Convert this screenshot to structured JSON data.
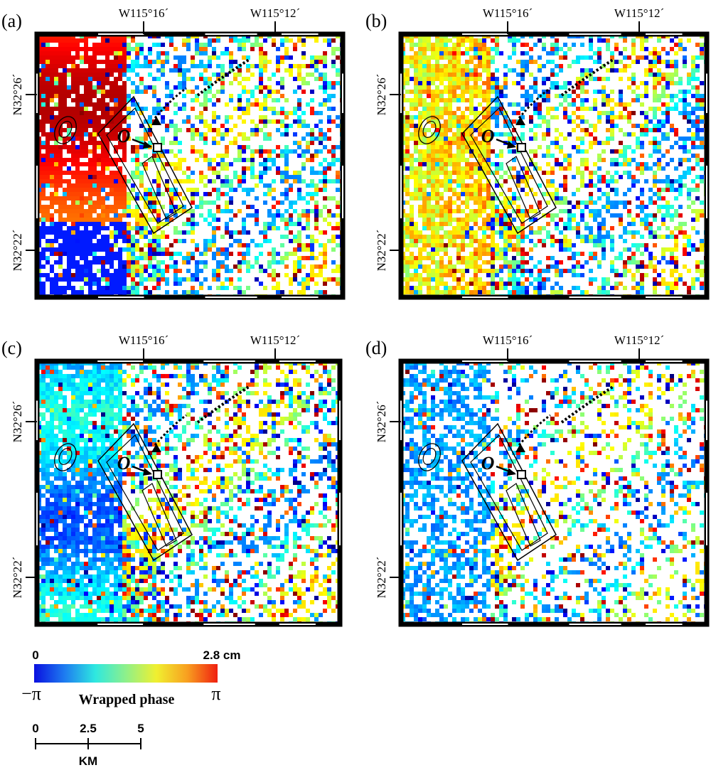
{
  "panels": [
    {
      "id": "a",
      "label": "(a)",
      "palette": "mixed"
    },
    {
      "id": "b",
      "label": "(b)",
      "palette": "warm"
    },
    {
      "id": "c",
      "label": "(c)",
      "palette": "cool"
    },
    {
      "id": "d",
      "label": "(d)",
      "palette": "sparse"
    }
  ],
  "axes": {
    "lon_ticks": [
      "W115°16´",
      "W115°12´"
    ],
    "lat_ticks": [
      "N32°26´",
      "N32°22´"
    ]
  },
  "map_marks": {
    "origin_label": "O"
  },
  "colorbar": {
    "min_value": "0",
    "max_value": "2.8 cm",
    "min_phase": "−π",
    "max_phase": "π",
    "title": "Wrapped phase",
    "colors": [
      "#0a10e0",
      "#1e7cf0",
      "#2ee8e0",
      "#8ef08a",
      "#f0f030",
      "#f8a020",
      "#f02010"
    ]
  },
  "scalebar": {
    "ticks": [
      "0",
      "2.5",
      "5"
    ],
    "unit": "KM"
  }
}
